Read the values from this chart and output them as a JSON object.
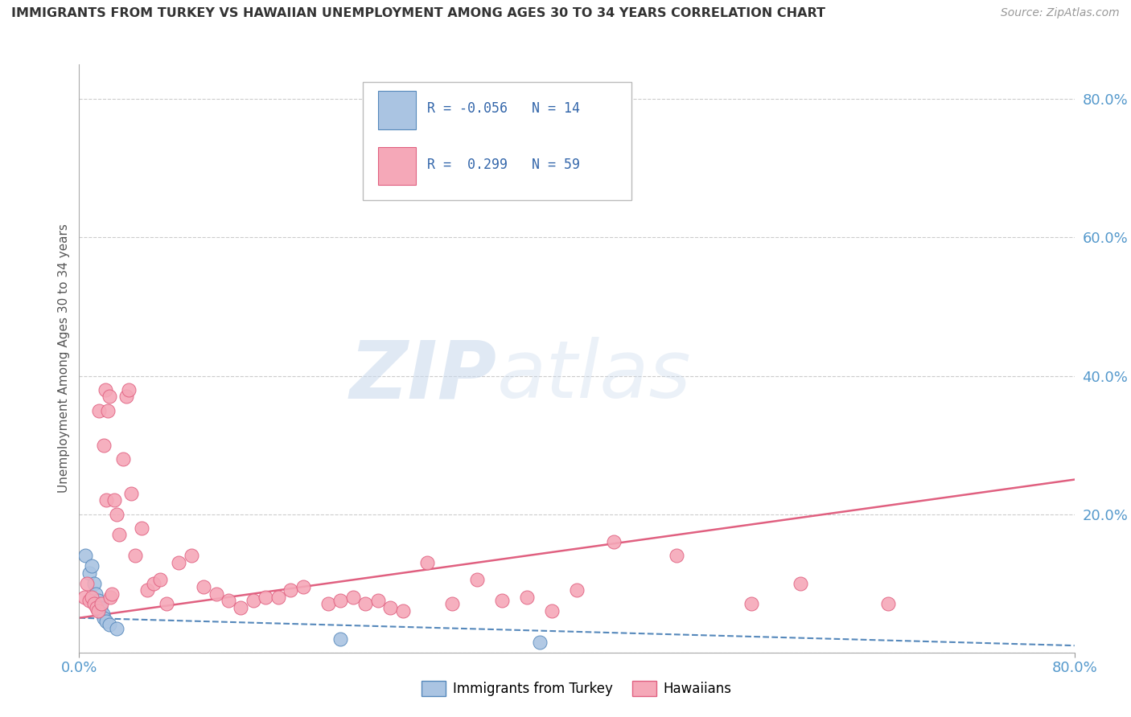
{
  "title": "IMMIGRANTS FROM TURKEY VS HAWAIIAN UNEMPLOYMENT AMONG AGES 30 TO 34 YEARS CORRELATION CHART",
  "source": "Source: ZipAtlas.com",
  "ylabel": "Unemployment Among Ages 30 to 34 years",
  "watermark_zip": "ZIP",
  "watermark_atlas": "atlas",
  "blue_color": "#aac4e2",
  "pink_color": "#f5a8b8",
  "blue_line_color": "#5588bb",
  "pink_line_color": "#e06080",
  "grid_color": "#cccccc",
  "title_color": "#333333",
  "axis_label_color": "#5599cc",
  "blue_scatter": [
    [
      0.5,
      14.0
    ],
    [
      0.8,
      11.5
    ],
    [
      1.0,
      12.5
    ],
    [
      1.2,
      10.0
    ],
    [
      1.3,
      8.5
    ],
    [
      1.5,
      7.5
    ],
    [
      1.7,
      6.5
    ],
    [
      1.9,
      5.5
    ],
    [
      2.0,
      5.0
    ],
    [
      2.2,
      4.5
    ],
    [
      2.4,
      4.0
    ],
    [
      3.0,
      3.5
    ],
    [
      21.0,
      2.0
    ],
    [
      37.0,
      1.5
    ]
  ],
  "pink_scatter": [
    [
      0.4,
      8.0
    ],
    [
      0.6,
      10.0
    ],
    [
      0.8,
      7.5
    ],
    [
      1.0,
      8.0
    ],
    [
      1.2,
      7.0
    ],
    [
      1.4,
      6.5
    ],
    [
      1.5,
      6.0
    ],
    [
      1.6,
      35.0
    ],
    [
      1.8,
      7.0
    ],
    [
      2.0,
      30.0
    ],
    [
      2.1,
      38.0
    ],
    [
      2.2,
      22.0
    ],
    [
      2.3,
      35.0
    ],
    [
      2.4,
      37.0
    ],
    [
      2.5,
      8.0
    ],
    [
      2.6,
      8.5
    ],
    [
      2.8,
      22.0
    ],
    [
      3.0,
      20.0
    ],
    [
      3.2,
      17.0
    ],
    [
      3.5,
      28.0
    ],
    [
      3.8,
      37.0
    ],
    [
      4.0,
      38.0
    ],
    [
      4.2,
      23.0
    ],
    [
      4.5,
      14.0
    ],
    [
      5.0,
      18.0
    ],
    [
      5.5,
      9.0
    ],
    [
      6.0,
      10.0
    ],
    [
      6.5,
      10.5
    ],
    [
      7.0,
      7.0
    ],
    [
      8.0,
      13.0
    ],
    [
      9.0,
      14.0
    ],
    [
      10.0,
      9.5
    ],
    [
      11.0,
      8.5
    ],
    [
      12.0,
      7.5
    ],
    [
      13.0,
      6.5
    ],
    [
      14.0,
      7.5
    ],
    [
      15.0,
      8.0
    ],
    [
      16.0,
      8.0
    ],
    [
      17.0,
      9.0
    ],
    [
      18.0,
      9.5
    ],
    [
      20.0,
      7.0
    ],
    [
      21.0,
      7.5
    ],
    [
      22.0,
      8.0
    ],
    [
      23.0,
      7.0
    ],
    [
      24.0,
      7.5
    ],
    [
      25.0,
      6.5
    ],
    [
      26.0,
      6.0
    ],
    [
      28.0,
      13.0
    ],
    [
      30.0,
      7.0
    ],
    [
      32.0,
      10.5
    ],
    [
      34.0,
      7.5
    ],
    [
      36.0,
      8.0
    ],
    [
      38.0,
      6.0
    ],
    [
      40.0,
      9.0
    ],
    [
      43.0,
      16.0
    ],
    [
      48.0,
      14.0
    ],
    [
      54.0,
      7.0
    ],
    [
      58.0,
      10.0
    ],
    [
      65.0,
      7.0
    ]
  ],
  "xlim": [
    0.0,
    80.0
  ],
  "ylim": [
    0.0,
    85.0
  ],
  "yticks": [
    0,
    20,
    40,
    60,
    80
  ],
  "xticks": [
    0,
    80
  ],
  "figsize": [
    14.06,
    8.92
  ],
  "dpi": 100
}
